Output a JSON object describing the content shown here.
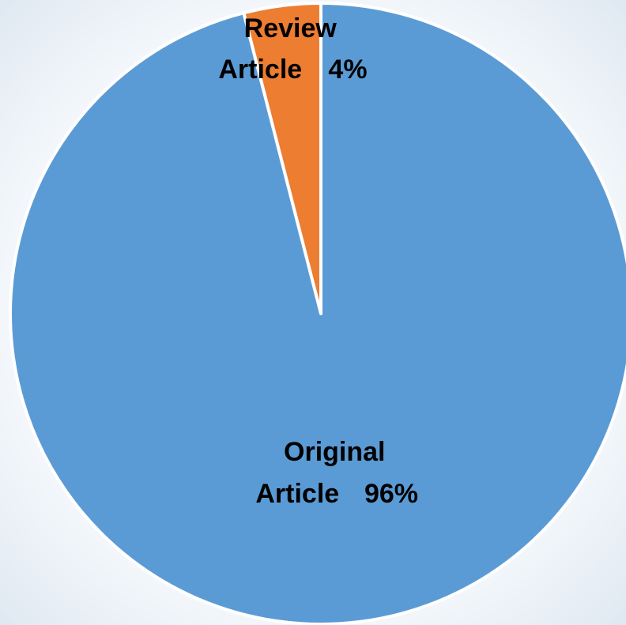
{
  "chart_data": {
    "type": "pie",
    "title": "",
    "slices": [
      {
        "label_line1": "Review",
        "label_line2": "Article",
        "percent_text": "4%",
        "value": 4,
        "color": "#ed7d31"
      },
      {
        "label_line1": "Original",
        "label_line2": "Article",
        "percent_text": "96%",
        "value": 96,
        "color": "#5b9bd5"
      }
    ],
    "start_angle_deg": 0,
    "direction": "counterclockwise",
    "slice_border_color": "#ffffff",
    "legend": "none"
  }
}
